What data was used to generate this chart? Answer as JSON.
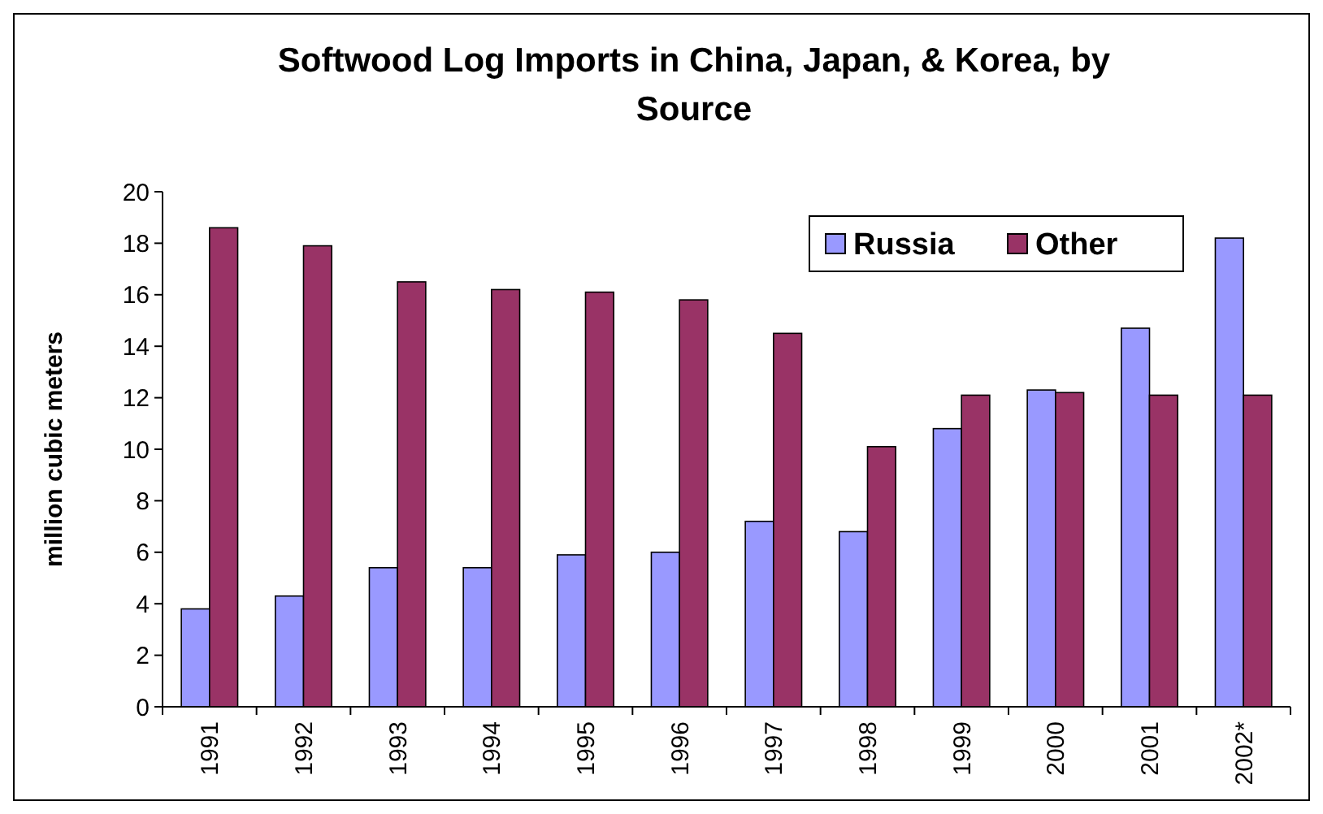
{
  "chart_data": {
    "type": "bar",
    "title": "Softwood Log Imports in China, Japan, & Korea, by Source",
    "ylabel": "million cubic meters",
    "categories": [
      "1991",
      "1992",
      "1993",
      "1994",
      "1995",
      "1996",
      "1997",
      "1998",
      "1999",
      "2000",
      "2001",
      "2002*"
    ],
    "series": [
      {
        "name": "Russia",
        "color": "#9999ff",
        "values": [
          3.8,
          4.3,
          5.4,
          5.4,
          5.9,
          6.0,
          7.2,
          6.8,
          10.8,
          12.3,
          14.7,
          18.2
        ]
      },
      {
        "name": "Other",
        "color": "#993366",
        "values": [
          18.6,
          17.9,
          16.5,
          16.2,
          16.1,
          15.8,
          14.5,
          10.1,
          12.1,
          12.2,
          12.1,
          12.1
        ]
      }
    ],
    "ylim": [
      0,
      20
    ],
    "yticks": [
      0,
      2,
      4,
      6,
      8,
      10,
      12,
      14,
      16,
      18,
      20
    ],
    "grid": false,
    "legend": "top right"
  }
}
